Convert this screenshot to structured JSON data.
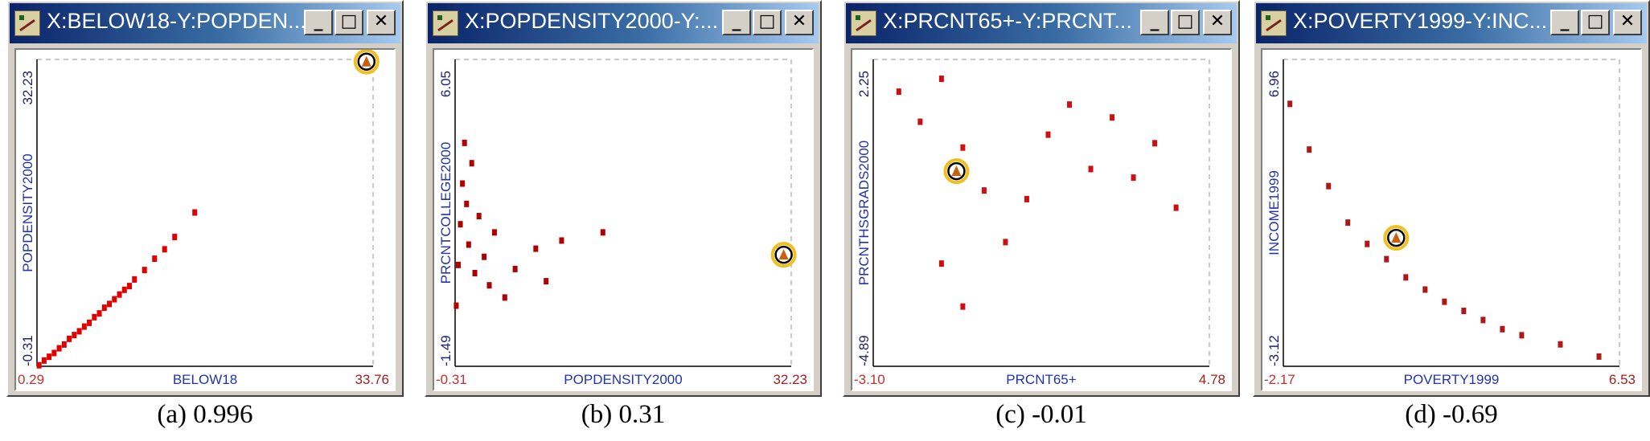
{
  "panels": [
    {
      "title": "X:BELOW18-Y:POPDEN...",
      "caption": "(a) 0.996",
      "x_axis": {
        "label": "BELOW18",
        "min": "0.29",
        "max": "33.76"
      },
      "y_axis": {
        "label": "POPDENSITY2000",
        "min": "-0.31",
        "max": "32.23"
      },
      "point_color": "#e00000",
      "chart_data": {
        "type": "scatter",
        "xlim": [
          0.29,
          33.76
        ],
        "ylim": [
          -0.31,
          32.23
        ],
        "trend": "strong positive linear",
        "points": [
          [
            0.5,
            -0.2
          ],
          [
            1.0,
            0.3
          ],
          [
            1.5,
            0.7
          ],
          [
            2.0,
            1.1
          ],
          [
            2.5,
            1.6
          ],
          [
            3.0,
            2.0
          ],
          [
            3.5,
            2.6
          ],
          [
            4.0,
            3.0
          ],
          [
            4.5,
            3.4
          ],
          [
            5.0,
            3.9
          ],
          [
            5.5,
            4.3
          ],
          [
            6.0,
            4.9
          ],
          [
            6.5,
            5.3
          ],
          [
            7.0,
            5.9
          ],
          [
            7.5,
            6.3
          ],
          [
            8.0,
            6.8
          ],
          [
            8.5,
            7.3
          ],
          [
            9.0,
            7.8
          ],
          [
            9.5,
            8.2
          ],
          [
            10.0,
            8.9
          ],
          [
            11.0,
            9.9
          ],
          [
            12.0,
            11.1
          ],
          [
            13.0,
            12.1
          ],
          [
            14.0,
            13.4
          ],
          [
            16.0,
            16.0
          ]
        ],
        "highlight": [
          33.1,
          32.0
        ]
      }
    },
    {
      "title": "X:POPDENSITY2000-Y:...",
      "caption": "(b) 0.31",
      "x_axis": {
        "label": "POPDENSITY2000",
        "min": "-0.31",
        "max": "32.23"
      },
      "y_axis": {
        "label": "PRCNTCOLLEGE2000",
        "min": "-1.49",
        "max": "6.05"
      },
      "point_color": "#b00000",
      "chart_data": {
        "type": "scatter",
        "xlim": [
          -0.31,
          32.23
        ],
        "ylim": [
          -1.49,
          6.05
        ],
        "trend": "dense cluster near x minimum, sparse outliers to the right",
        "points": [
          [
            -0.2,
            0.0
          ],
          [
            0.0,
            1.0
          ],
          [
            0.2,
            2.0
          ],
          [
            0.4,
            3.0
          ],
          [
            0.6,
            4.0
          ],
          [
            0.8,
            2.5
          ],
          [
            1.0,
            1.5
          ],
          [
            1.3,
            3.5
          ],
          [
            1.6,
            0.8
          ],
          [
            2.0,
            2.2
          ],
          [
            2.5,
            1.2
          ],
          [
            3.0,
            0.5
          ],
          [
            3.5,
            1.8
          ],
          [
            4.5,
            0.2
          ],
          [
            5.5,
            0.9
          ],
          [
            7.5,
            1.4
          ],
          [
            8.5,
            0.6
          ],
          [
            10.0,
            1.6
          ],
          [
            14.0,
            1.8
          ]
        ],
        "highlight": [
          31.5,
          1.25
        ]
      }
    },
    {
      "title": "X:PRCNT65+-Y:PRCNT...",
      "caption": "(c) -0.01",
      "x_axis": {
        "label": "PRCNT65+",
        "min": "-3.10",
        "max": "4.78"
      },
      "y_axis": {
        "label": "PRCNTHSGRADS2000",
        "min": "-4.89",
        "max": "2.25"
      },
      "point_color": "#cc1010",
      "chart_data": {
        "type": "scatter",
        "xlim": [
          -3.1,
          4.78
        ],
        "ylim": [
          -4.89,
          2.25
        ],
        "trend": "broad cloud, no linear correlation",
        "points": [
          [
            -2.5,
            1.5
          ],
          [
            -2.0,
            0.8
          ],
          [
            -1.5,
            1.8
          ],
          [
            -1.0,
            0.2
          ],
          [
            -0.5,
            -0.8
          ],
          [
            0.0,
            -2.0
          ],
          [
            0.5,
            -1.0
          ],
          [
            1.0,
            0.5
          ],
          [
            1.5,
            1.2
          ],
          [
            2.0,
            -0.3
          ],
          [
            2.5,
            0.9
          ],
          [
            3.0,
            -0.5
          ],
          [
            3.5,
            0.3
          ],
          [
            4.0,
            -1.2
          ],
          [
            -1.5,
            -2.5
          ],
          [
            -1.0,
            -3.5
          ]
        ],
        "highlight": [
          -1.15,
          -0.35
        ]
      }
    },
    {
      "title": "X:POVERTY1999-Y:INC...",
      "caption": "(d) -0.69",
      "x_axis": {
        "label": "POVERTY1999",
        "min": "-2.17",
        "max": "6.53"
      },
      "y_axis": {
        "label": "INCOME1999",
        "min": "-3.12",
        "max": "6.96"
      },
      "point_color": "#b01818",
      "chart_data": {
        "type": "scatter",
        "xlim": [
          -2.17,
          6.53
        ],
        "ylim": [
          -3.12,
          6.96
        ],
        "trend": "negative, curved decreasing relationship",
        "points": [
          [
            -2.0,
            5.5
          ],
          [
            -1.5,
            4.0
          ],
          [
            -1.0,
            2.8
          ],
          [
            -0.5,
            1.6
          ],
          [
            0.0,
            0.9
          ],
          [
            0.5,
            0.4
          ],
          [
            1.0,
            -0.2
          ],
          [
            1.5,
            -0.6
          ],
          [
            2.0,
            -1.0
          ],
          [
            2.5,
            -1.3
          ],
          [
            3.0,
            -1.6
          ],
          [
            3.5,
            -1.9
          ],
          [
            4.0,
            -2.1
          ],
          [
            5.0,
            -2.4
          ],
          [
            6.0,
            -2.8
          ]
        ],
        "highlight": [
          0.75,
          1.1
        ]
      }
    }
  ],
  "window_buttons": {
    "minimize": "_",
    "maximize": "□",
    "close": "✕"
  },
  "icons": {
    "window": "scatterplot-app-icon"
  }
}
